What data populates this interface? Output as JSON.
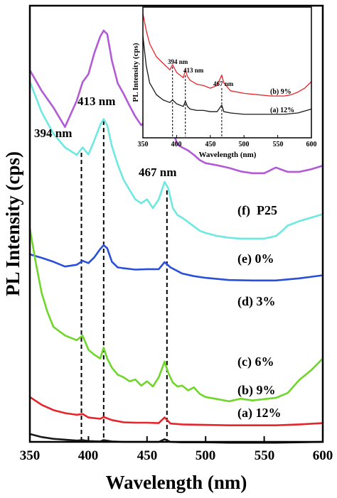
{
  "chart_data": [
    {
      "type": "line",
      "xlabel": "Wavelength (nm)",
      "ylabel": "PL Intensity (cps)",
      "xlim": [
        350,
        600
      ],
      "xticks": [
        350,
        400,
        450,
        500,
        550,
        600
      ],
      "y_units": "arbitrary (cps), stacked/offset curves, no y tick labels",
      "ylim": [
        0,
        100
      ],
      "grid": false,
      "reference_lines": [
        {
          "x": 394,
          "label": "394 nm"
        },
        {
          "x": 413,
          "label": "413 nm"
        },
        {
          "x": 467,
          "label": "467 nm"
        }
      ],
      "series": [
        {
          "name": "(f) P25",
          "color": "#b35ad6",
          "x": [
            350,
            360,
            370,
            380,
            390,
            395,
            400,
            405,
            410,
            413,
            416,
            420,
            425,
            430,
            435,
            440,
            445,
            450,
            455,
            460,
            465,
            468,
            472,
            476,
            480,
            485,
            490,
            495,
            500,
            510,
            520,
            530,
            540,
            550,
            560,
            565,
            570,
            580,
            590,
            600
          ],
          "y": [
            85.2,
            80.5,
            76.7,
            72.2,
            78.2,
            82.5,
            84.3,
            89.1,
            92.9,
            94.3,
            93.5,
            87.4,
            82.2,
            79.8,
            77.1,
            74.6,
            72.6,
            73.8,
            71.8,
            73.0,
            76.6,
            75.2,
            71.2,
            68.2,
            67.5,
            66.8,
            65.8,
            64.6,
            63.9,
            63.4,
            62.8,
            62.0,
            61.6,
            61.6,
            62.9,
            62.4,
            61.9,
            61.9,
            62.5,
            63.3
          ]
        },
        {
          "name": "(e) 0%",
          "color": "#6ee8e0",
          "x": [
            350,
            360,
            370,
            380,
            390,
            395,
            400,
            405,
            410,
            413,
            416,
            420,
            425,
            430,
            435,
            440,
            445,
            450,
            455,
            460,
            465,
            468,
            472,
            476,
            480,
            485,
            490,
            495,
            500,
            510,
            520,
            530,
            540,
            550,
            560,
            565,
            570,
            580,
            590,
            600
          ],
          "y": [
            82.6,
            75.6,
            70.7,
            67.5,
            65.8,
            67.5,
            65.9,
            69.1,
            72.6,
            74.0,
            72.6,
            67.8,
            63.6,
            60.1,
            57.8,
            55.6,
            54.7,
            55.6,
            53.6,
            55.6,
            59.6,
            58.2,
            53.6,
            52.0,
            51.4,
            50.4,
            49.4,
            48.4,
            47.9,
            47.2,
            46.8,
            46.6,
            46.6,
            46.6,
            47.2,
            48.3,
            49.6,
            50.6,
            51.4,
            52.2
          ]
        },
        {
          "name": "(d) 3%",
          "color": "#2a4fd8",
          "x": [
            350,
            360,
            370,
            380,
            390,
            395,
            400,
            405,
            410,
            413,
            416,
            420,
            425,
            430,
            440,
            450,
            460,
            465,
            470,
            480,
            490,
            500,
            520,
            540,
            560,
            580,
            600
          ],
          "y": [
            43.0,
            42.2,
            41.3,
            40.2,
            40.6,
            41.5,
            41.0,
            42.3,
            44.2,
            45.1,
            44.4,
            41.3,
            40.0,
            39.8,
            39.5,
            39.6,
            39.6,
            41.2,
            40.0,
            38.6,
            38.0,
            37.6,
            37.1,
            37.0,
            37.0,
            37.5,
            38.2
          ]
        },
        {
          "name": "(c) 6%",
          "color": "#6fd62a",
          "x": [
            350,
            355,
            360,
            365,
            370,
            380,
            390,
            395,
            400,
            405,
            410,
            413,
            416,
            420,
            425,
            430,
            435,
            440,
            445,
            450,
            455,
            460,
            465,
            468,
            472,
            476,
            480,
            485,
            490,
            495,
            500,
            510,
            520,
            530,
            540,
            550,
            560,
            570,
            580,
            590,
            600
          ],
          "y": [
            48.9,
            41.2,
            34.2,
            29.8,
            26.4,
            24.4,
            23.3,
            24.4,
            21.1,
            20.0,
            19.1,
            21.6,
            19.1,
            17.0,
            15.4,
            14.8,
            13.9,
            14.3,
            12.9,
            13.9,
            12.7,
            14.8,
            18.4,
            15.9,
            13.6,
            12.7,
            12.9,
            11.8,
            12.5,
            11.0,
            10.3,
            9.8,
            9.3,
            9.9,
            9.5,
            9.8,
            10.1,
            11.2,
            14.2,
            16.4,
            19.1
          ]
        },
        {
          "name": "(b) 9%",
          "color": "#e8242b",
          "x": [
            350,
            360,
            370,
            380,
            390,
            395,
            400,
            410,
            413,
            420,
            430,
            440,
            450,
            460,
            465,
            470,
            480,
            500,
            520,
            540,
            560,
            580,
            600
          ],
          "y": [
            10.3,
            8.5,
            7.3,
            6.6,
            6.2,
            6.4,
            5.6,
            5.3,
            5.7,
            5.0,
            4.5,
            4.4,
            4.4,
            4.3,
            5.6,
            4.2,
            4.0,
            3.9,
            3.8,
            3.8,
            3.8,
            4.0,
            4.3
          ]
        },
        {
          "name": "(a) 12%",
          "color": "#1a1a1a",
          "x": [
            350,
            360,
            370,
            380,
            390,
            395,
            400,
            410,
            413,
            420,
            430,
            440,
            450,
            460,
            465,
            470,
            480,
            500,
            520,
            540,
            560,
            580,
            600
          ],
          "y": [
            1.8,
            1.1,
            0.7,
            0.5,
            0.3,
            0.4,
            0.2,
            0.1,
            0.4,
            0.1,
            0.0,
            0.0,
            0.0,
            0.0,
            0.6,
            0.0,
            -0.1,
            -0.1,
            -0.2,
            -0.2,
            -0.2,
            -0.1,
            0.0
          ]
        }
      ]
    },
    {
      "type": "line",
      "inset": true,
      "xlabel": "Wavelength (nm)",
      "ylabel": "PL Intensity (cps)",
      "xlim": [
        350,
        600
      ],
      "xticks": [
        350,
        400,
        450,
        500,
        550,
        600
      ],
      "ylim": [
        0,
        100
      ],
      "grid": false,
      "reference_lines": [
        {
          "x": 394,
          "label": "394 nm"
        },
        {
          "x": 413,
          "label": "413 nm"
        },
        {
          "x": 467,
          "label": "467 nm"
        }
      ],
      "series": [
        {
          "name": "(b) 9%",
          "color": "#e8242b",
          "x": [
            350,
            355,
            360,
            370,
            380,
            390,
            394,
            400,
            405,
            410,
            413,
            416,
            420,
            430,
            440,
            450,
            460,
            467,
            470,
            480,
            500,
            520,
            540,
            560,
            570,
            580,
            590,
            600
          ],
          "y": [
            95,
            82,
            72,
            62,
            57,
            52,
            56,
            50,
            48,
            46,
            52,
            47,
            44,
            41,
            40,
            38,
            40,
            48,
            42,
            36,
            34,
            33,
            32,
            32,
            33,
            35,
            38,
            43
          ]
        },
        {
          "name": "(a) 12%",
          "color": "#1a1a1a",
          "x": [
            350,
            355,
            360,
            370,
            380,
            390,
            394,
            400,
            410,
            413,
            416,
            420,
            430,
            440,
            450,
            460,
            467,
            470,
            480,
            500,
            520,
            540,
            560,
            580,
            600
          ],
          "y": [
            78,
            55,
            42,
            33,
            29,
            27,
            29,
            26,
            24,
            28,
            24,
            22,
            21,
            21,
            20,
            20,
            25,
            20,
            19,
            18,
            18,
            18,
            18,
            19,
            22
          ]
        }
      ]
    }
  ],
  "main": {
    "ylabel": "PL Intensity (cps)",
    "xlabel": "Wavelength (nm)",
    "ticks": [
      "350",
      "400",
      "450",
      "500",
      "550",
      "600"
    ],
    "peaks": [
      "394 nm",
      "413 nm",
      "467 nm"
    ],
    "labels": [
      "(f)  P25",
      "(e) 0%",
      "(d) 3%",
      "(c) 6%",
      "(b) 9%",
      "(a) 12%"
    ]
  },
  "inset": {
    "ylabel": "PL Intensity (cps)",
    "xlabel": "Wavelength (nm)",
    "ticks": [
      "350",
      "400",
      "450",
      "500",
      "550",
      "600"
    ],
    "peaks": [
      "394 nm",
      "413 nm",
      "467 nm"
    ],
    "labels": [
      "(b) 9%",
      "(a) 12%"
    ]
  }
}
